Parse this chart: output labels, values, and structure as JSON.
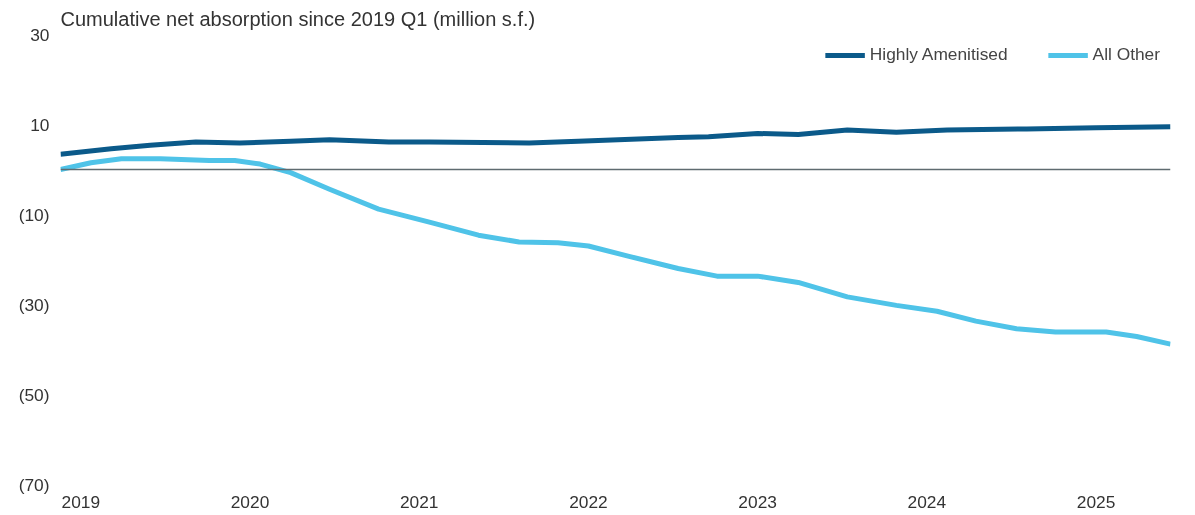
{
  "chart_data": {
    "type": "line",
    "title": "Cumulative net absorption since 2019 Q1 (million s.f.)",
    "series": [
      {
        "name": "Highly Amenitised",
        "color": "#0b5a8a",
        "x": [
          2018.88,
          2019.18,
          2019.41,
          2019.68,
          2019.94,
          2020.24,
          2020.47,
          2020.82,
          2021.06,
          2021.65,
          2021.94,
          2022.53,
          2022.71,
          2023.0,
          2023.24,
          2023.53,
          2023.82,
          2024.12,
          2024.59,
          2025.0,
          2025.44
        ],
        "values": [
          3.4,
          4.6,
          5.4,
          6.1,
          5.9,
          6.3,
          6.6,
          6.1,
          6.1,
          5.9,
          6.3,
          7.1,
          7.3,
          8.0,
          7.8,
          8.8,
          8.3,
          8.8,
          9.0,
          9.3,
          9.5
        ]
      },
      {
        "name": "All Other",
        "color": "#4fc3e8",
        "x": [
          2018.88,
          2019.06,
          2019.24,
          2019.47,
          2019.76,
          2019.91,
          2020.06,
          2020.24,
          2020.47,
          2020.76,
          2021.06,
          2021.35,
          2021.59,
          2021.82,
          2022.0,
          2022.24,
          2022.53,
          2022.76,
          2023.0,
          2023.24,
          2023.53,
          2023.82,
          2024.06,
          2024.29,
          2024.53,
          2024.76,
          2025.06,
          2025.24,
          2025.44
        ],
        "values": [
          0,
          1.5,
          2.4,
          2.4,
          2.0,
          2.0,
          1.2,
          -0.7,
          -4.4,
          -8.8,
          -11.7,
          -14.6,
          -16.1,
          -16.3,
          -17,
          -19.3,
          -22,
          -23.7,
          -23.7,
          -25.1,
          -28.3,
          -30.2,
          -31.5,
          -33.7,
          -35.4,
          -36.1,
          -36.1,
          -37.1,
          -38.8
        ]
      }
    ],
    "xlim": [
      2018.88,
      2025.44
    ],
    "xticks": [
      2019,
      2020,
      2021,
      2022,
      2023,
      2024,
      2025
    ],
    "ylim": [
      -70,
      30
    ],
    "yticks": [
      30,
      10,
      {
        "value": -10,
        "label": "(10)"
      },
      {
        "value": -30,
        "label": "(30)"
      },
      {
        "value": -50,
        "label": "(50)"
      },
      {
        "value": -70,
        "label": "(70)"
      }
    ],
    "ref_lines": [
      {
        "axis": "y",
        "value": 0,
        "label": null,
        "color": "#5f6b70"
      }
    ],
    "grid": false,
    "legend": "top right",
    "marker": "none",
    "line_style": "solid"
  }
}
